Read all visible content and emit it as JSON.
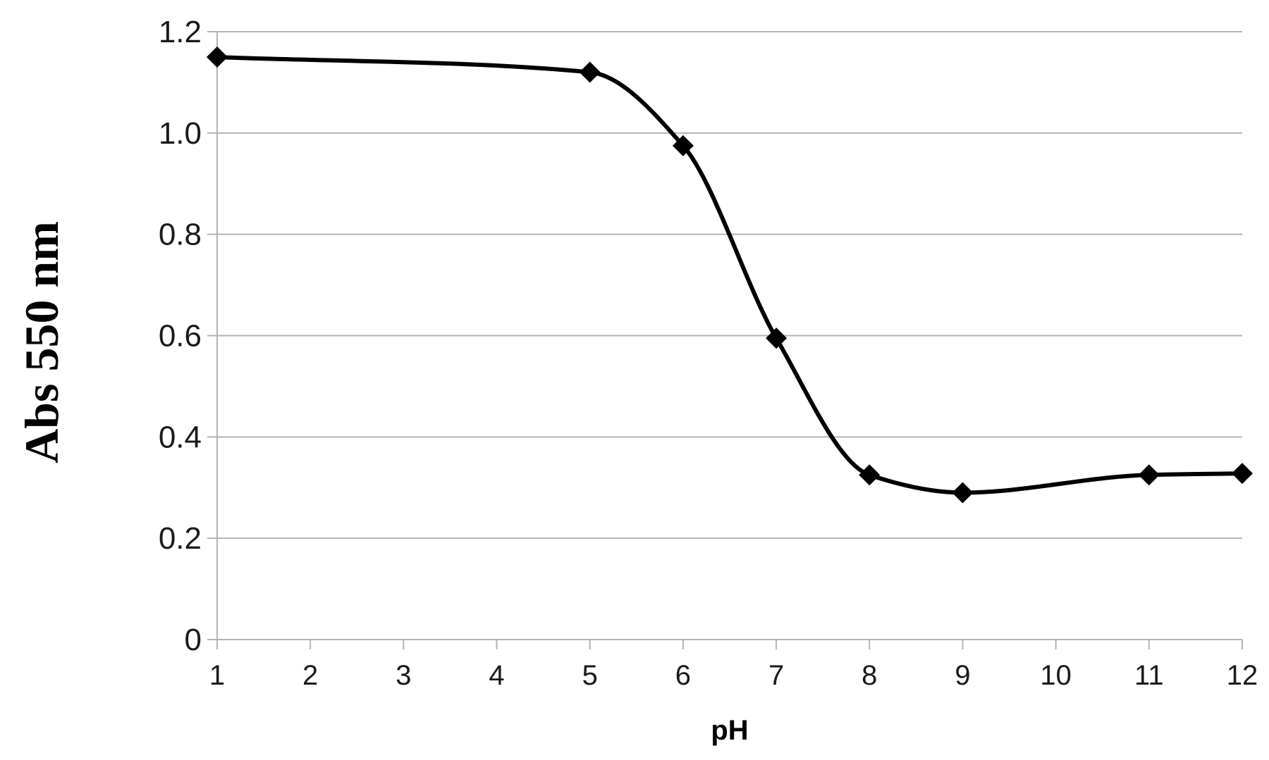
{
  "chart_data": {
    "type": "line",
    "xlabel": "pH",
    "ylabel": "Abs 550 nm",
    "xlim": [
      1,
      12
    ],
    "ylim": [
      0,
      1.2
    ],
    "x_ticks": [
      "1",
      "2",
      "3",
      "4",
      "5",
      "6",
      "7",
      "8",
      "9",
      "10",
      "11",
      "12"
    ],
    "y_ticks": [
      "0",
      "0.2",
      "0.4",
      "0.6",
      "0.8",
      "1.0",
      "1.2"
    ],
    "grid": "horizontal",
    "legend": "none",
    "smooth": true,
    "marker": "diamond",
    "line_color": "#000000",
    "grid_color": "#b3b3b3",
    "series": [
      {
        "x": [
          1,
          5,
          6,
          7,
          8,
          9,
          11,
          12
        ],
        "y": [
          1.15,
          1.12,
          0.975,
          0.595,
          0.325,
          0.29,
          0.325,
          0.328
        ]
      }
    ]
  }
}
